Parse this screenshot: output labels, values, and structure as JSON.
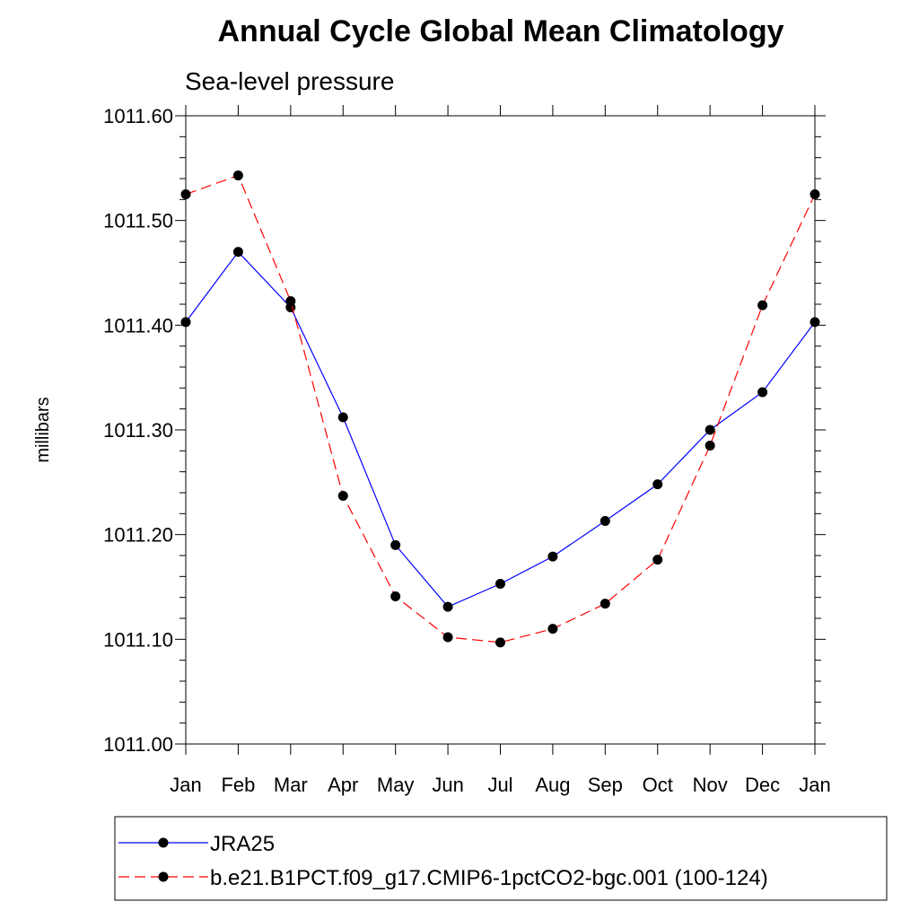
{
  "chart_data": {
    "type": "line",
    "title": "Annual Cycle Global Mean Climatology",
    "subtitle": "Sea-level pressure",
    "ylabel": "millibars",
    "xlabel": "",
    "categories": [
      "Jan",
      "Feb",
      "Mar",
      "Apr",
      "May",
      "Jun",
      "Jul",
      "Aug",
      "Sep",
      "Oct",
      "Nov",
      "Dec",
      "Jan"
    ],
    "ylim": [
      1011.0,
      1011.6
    ],
    "yticks": [
      1011.0,
      1011.1,
      1011.2,
      1011.3,
      1011.4,
      1011.5,
      1011.6
    ],
    "ytick_labels": [
      "1011.00",
      "1011.10",
      "1011.20",
      "1011.30",
      "1011.40",
      "1011.50",
      "1011.60"
    ],
    "grid": false,
    "legend_position": "bottom",
    "series": [
      {
        "name": "JRA25",
        "color": "#0000ff",
        "line_style": "solid",
        "marker": "filled-circle",
        "values": [
          1011.403,
          1011.47,
          1011.417,
          1011.312,
          1011.19,
          1011.131,
          1011.153,
          1011.179,
          1011.213,
          1011.248,
          1011.3,
          1011.336,
          1011.403
        ]
      },
      {
        "name": "b.e21.B1PCT.f09_g17.CMIP6-1pctCO2-bgc.001 (100-124)",
        "color": "#ff0000",
        "line_style": "dashed",
        "marker": "filled-circle",
        "values": [
          1011.525,
          1011.543,
          1011.423,
          1011.237,
          1011.141,
          1011.102,
          1011.097,
          1011.11,
          1011.134,
          1011.176,
          1011.285,
          1011.419,
          1011.525
        ]
      }
    ]
  }
}
